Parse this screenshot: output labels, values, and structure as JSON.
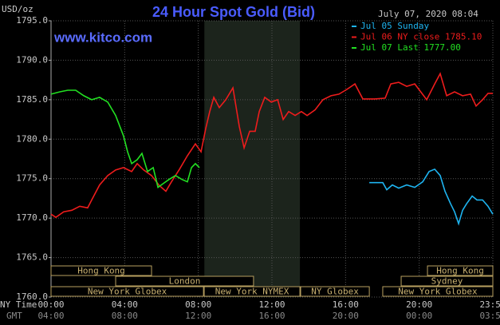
{
  "chart_data": {
    "type": "line",
    "title": "24 Hour Spot Gold (Bid)",
    "site": "www.kitco.com",
    "timestamp": "July 07, 2020 08:04",
    "y_label": "USD/oz",
    "x_label": "NY Time",
    "x2_label": "GMT",
    "xlim": [
      0,
      24
    ],
    "ylim": [
      1760,
      1795
    ],
    "yticks": [
      {
        "value": 1760,
        "label": "1760.0"
      },
      {
        "value": 1765,
        "label": "1765.0"
      },
      {
        "value": 1770,
        "label": "1770.0"
      },
      {
        "value": 1775,
        "label": "1775.0"
      },
      {
        "value": 1780,
        "label": "1780.0"
      },
      {
        "value": 1785,
        "label": "1785.0"
      },
      {
        "value": 1790,
        "label": "1790.0"
      },
      {
        "value": 1795,
        "label": "1795.0"
      }
    ],
    "xticks": [
      {
        "value": 0,
        "label": "00:00"
      },
      {
        "value": 4,
        "label": "04:00"
      },
      {
        "value": 8,
        "label": "08:00"
      },
      {
        "value": 12,
        "label": "12:00"
      },
      {
        "value": 16,
        "label": "16:00"
      },
      {
        "value": 20,
        "label": "20:00"
      },
      {
        "value": 24,
        "label": "23:59"
      }
    ],
    "x2ticks": [
      {
        "value": 0,
        "label": "04:00"
      },
      {
        "value": 4,
        "label": "08:00"
      },
      {
        "value": 8,
        "label": "12:00"
      },
      {
        "value": 12,
        "label": "16:00"
      },
      {
        "value": 16,
        "label": "20:00"
      },
      {
        "value": 20,
        "label": "00:00"
      },
      {
        "value": 24,
        "label": "03:59"
      }
    ],
    "grid": true,
    "shaded": [
      8.33,
      13.52
    ],
    "session_rows": [
      [
        {
          "label": "Hong Kong",
          "start": 0,
          "end": 5.46
        },
        {
          "label": "Hong Kong",
          "start": 20.45,
          "end": 24
        }
      ],
      [
        {
          "label": "London",
          "start": 3.51,
          "end": 11.0
        },
        {
          "label": "Sydney",
          "start": 19.02,
          "end": 24
        }
      ],
      [
        {
          "label": "New York Globex",
          "start": 0,
          "end": 8.28
        },
        {
          "label": "New York NYMEX",
          "start": 8.32,
          "end": 13.52
        },
        {
          "label": "NY Globex",
          "start": 13.56,
          "end": 17.29
        },
        {
          "label": "New York Globex",
          "start": 18.02,
          "end": 24
        }
      ]
    ],
    "series": [
      {
        "name": "Jul 05 Sunday",
        "color": "#1eb4f0",
        "x": [
          17.29,
          18.02,
          18.24,
          18.54,
          18.89,
          19.32,
          19.76,
          20.19,
          20.54,
          20.84,
          21.14,
          21.4,
          21.71,
          21.92,
          22.14,
          22.36,
          22.57,
          22.88,
          23.14,
          23.44,
          23.74,
          24.0
        ],
        "values": [
          1774.5,
          1774.5,
          1773.6,
          1774.2,
          1773.8,
          1774.2,
          1773.9,
          1774.6,
          1775.9,
          1776.2,
          1775.4,
          1773.4,
          1771.8,
          1770.8,
          1769.3,
          1771.0,
          1771.8,
          1772.8,
          1772.3,
          1772.3,
          1771.5,
          1770.5
        ]
      },
      {
        "name": "Jul 06 NY close 1785.10",
        "color": "#ee1c1c",
        "x": [
          0,
          0.26,
          0.69,
          1.13,
          1.56,
          1.99,
          2.21,
          2.64,
          3.08,
          3.51,
          3.94,
          4.38,
          4.68,
          5.03,
          5.46,
          5.89,
          6.24,
          6.54,
          6.98,
          7.41,
          7.84,
          8.15,
          8.41,
          8.62,
          8.84,
          9.14,
          9.49,
          9.88,
          10.23,
          10.49,
          10.79,
          11.09,
          11.31,
          11.61,
          11.96,
          12.31,
          12.61,
          12.91,
          13.26,
          13.6,
          13.91,
          14.34,
          14.77,
          15.21,
          15.64,
          16.07,
          16.51,
          16.94,
          17.59,
          18.15,
          18.46,
          18.89,
          19.32,
          19.76,
          20.41,
          20.84,
          21.14,
          21.49,
          21.92,
          22.36,
          22.79,
          23.09,
          23.44,
          23.74,
          24.0
        ],
        "values": [
          1770.5,
          1770.1,
          1770.8,
          1771.0,
          1771.5,
          1771.3,
          1772.3,
          1774.2,
          1775.4,
          1776.1,
          1776.4,
          1775.9,
          1776.9,
          1776.1,
          1775.4,
          1774.1,
          1773.4,
          1774.6,
          1776.2,
          1777.9,
          1779.4,
          1778.4,
          1781.4,
          1783.5,
          1785.3,
          1784.0,
          1785.0,
          1786.5,
          1781.6,
          1778.9,
          1781.0,
          1781.0,
          1783.5,
          1785.3,
          1784.7,
          1785.0,
          1782.5,
          1783.5,
          1783.0,
          1783.5,
          1783.0,
          1783.7,
          1785.0,
          1785.5,
          1785.7,
          1786.3,
          1787.0,
          1785.1,
          1785.1,
          1785.2,
          1787.0,
          1787.2,
          1786.7,
          1787.0,
          1785.0,
          1787.0,
          1788.3,
          1785.5,
          1786.0,
          1785.5,
          1785.7,
          1784.2,
          1785.0,
          1785.8,
          1785.8
        ]
      },
      {
        "name": "Jul 07 Last 1777.00",
        "color": "#22e022",
        "x": [
          0,
          0.48,
          0.91,
          1.34,
          1.78,
          2.21,
          2.64,
          3.08,
          3.51,
          3.94,
          4.16,
          4.38,
          4.68,
          4.94,
          5.24,
          5.55,
          5.81,
          6.11,
          6.41,
          6.76,
          7.11,
          7.41,
          7.63,
          7.84,
          8.06
        ],
        "values": [
          1785.7,
          1786.0,
          1786.2,
          1786.2,
          1785.5,
          1785.0,
          1785.3,
          1784.7,
          1783.0,
          1780.4,
          1778.4,
          1776.9,
          1777.4,
          1778.2,
          1775.9,
          1776.4,
          1773.9,
          1774.4,
          1774.9,
          1775.4,
          1774.9,
          1774.6,
          1776.4,
          1776.9,
          1776.4
        ]
      }
    ]
  }
}
